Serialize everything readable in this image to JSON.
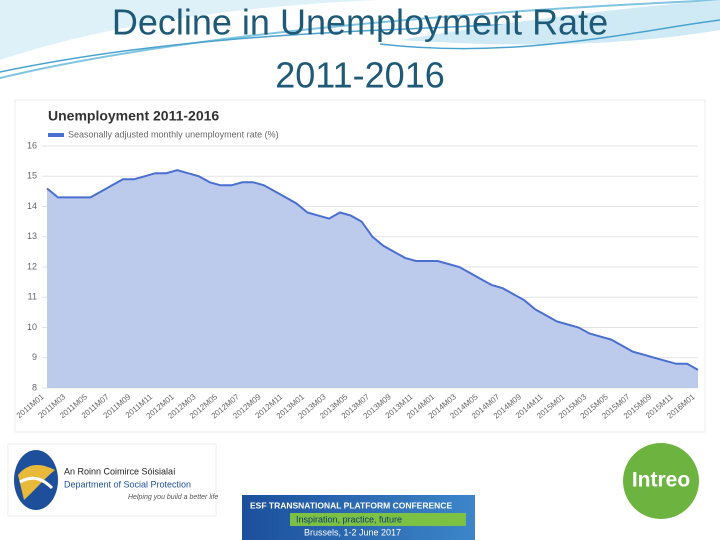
{
  "slide": {
    "title_line1": "Decline in Unemployment Rate",
    "title_line2": "2011-2016",
    "logo_dept_irish": "An Roinn Coimirce Sóisialaí",
    "logo_dept_english": "Department of Social Protection",
    "logo_dept_tagline": "Helping you build a better life",
    "logo_intreo": "Intreo",
    "esf_line1": "ESF TRANSNATIONAL PLATFORM CONFERENCE",
    "esf_line2": "Inspiration, practice, future",
    "esf_line3": "Brussels, 1-2 June 2017"
  },
  "chart_data": {
    "type": "area",
    "title": "Unemployment 2011-2016",
    "categories": [
      "2011M01",
      null,
      "2011M03",
      null,
      "2011M05",
      null,
      "2011M07",
      null,
      "2011M09",
      null,
      "2011M11",
      null,
      "2012M01",
      null,
      "2012M03",
      null,
      "2012M05",
      null,
      "2012M07",
      null,
      "2012M09",
      null,
      "2012M11",
      null,
      "2013M01",
      null,
      "2013M03",
      null,
      "2013M05",
      null,
      "2013M07",
      null,
      "2013M09",
      null,
      "2013M11",
      null,
      "2014M01",
      null,
      "2014M03",
      null,
      "2014M05",
      null,
      "2014M07",
      null,
      "2014M09",
      null,
      "2014M11",
      null,
      "2015M01",
      null,
      "2015M03",
      null,
      "2015M05",
      null,
      "2015M07",
      null,
      "2015M09",
      null,
      "2015M11",
      null,
      "2016M01"
    ],
    "series": [
      {
        "name": "Seasonally adjusted monthly unemployment rate (%)",
        "color": "#4a6fd0",
        "fill": "#bccaec",
        "values": [
          14.6,
          14.3,
          14.3,
          14.3,
          14.3,
          14.5,
          14.7,
          14.9,
          14.9,
          15.0,
          15.1,
          15.1,
          15.2,
          15.1,
          15.0,
          14.8,
          14.7,
          14.7,
          14.8,
          14.8,
          14.7,
          14.5,
          14.3,
          14.1,
          13.8,
          13.7,
          13.6,
          13.8,
          13.7,
          13.5,
          13.0,
          12.7,
          12.5,
          12.3,
          12.2,
          12.2,
          12.2,
          12.1,
          12.0,
          11.8,
          11.6,
          11.4,
          11.3,
          11.1,
          10.9,
          10.6,
          10.4,
          10.2,
          10.1,
          10.0,
          9.8,
          9.7,
          9.6,
          9.4,
          9.2,
          9.1,
          9.0,
          8.9,
          8.8,
          8.8,
          8.6
        ]
      }
    ],
    "ylim": [
      8,
      16
    ],
    "yticks": [
      8,
      9,
      10,
      11,
      12,
      13,
      14,
      15,
      16
    ],
    "grid": true
  }
}
